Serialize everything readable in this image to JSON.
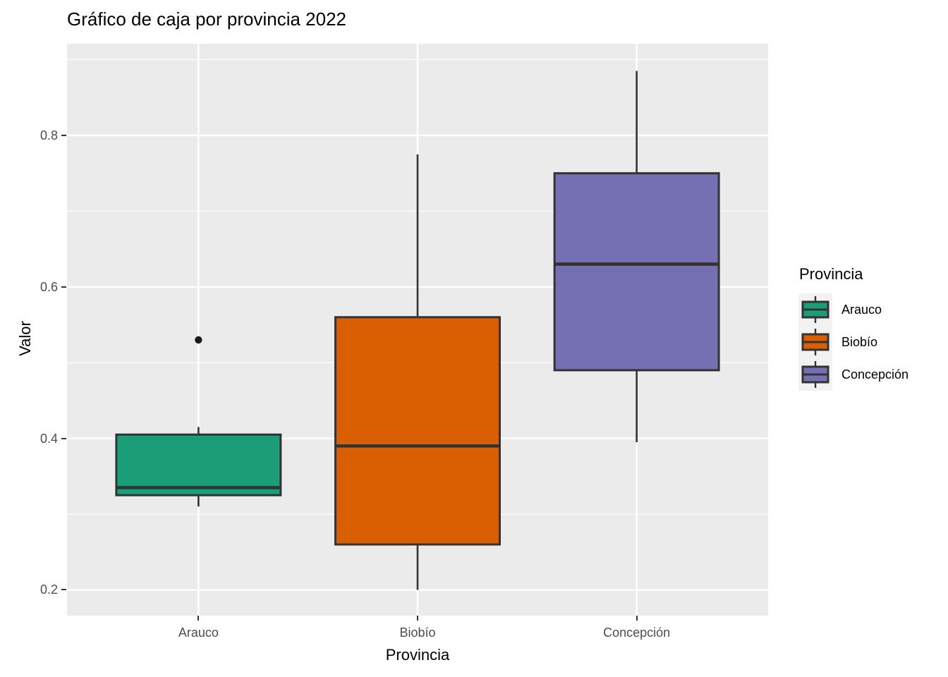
{
  "title": "Gráfico de caja por provincia 2022",
  "y_axis": {
    "title": "Valor",
    "tick_labels": [
      "0.8",
      "0.6",
      "0.4",
      "0.2"
    ]
  },
  "x_axis": {
    "title": "Provincia",
    "tick_labels": [
      "Arauco",
      "Biobío",
      "Concepción"
    ]
  },
  "legend": {
    "title": "Provincia",
    "items": [
      {
        "label": "Arauco",
        "color": "#1B9E77"
      },
      {
        "label": "Biobío",
        "color": "#D95F02"
      },
      {
        "label": "Concepción",
        "color": "#7570B3"
      }
    ]
  },
  "colors": {
    "panel_background": "#EBEBEB",
    "gridline": "#FFFFFF",
    "box_border": "#333333",
    "tick_mark": "#333333",
    "tick_label": "#4D4D4D",
    "text": "#000000",
    "legend_key_background": "#F2F2F2",
    "outlier": "#1A1A1A"
  },
  "chart_data": {
    "type": "boxplot",
    "title": "Gráfico de caja por provincia 2022",
    "xlabel": "Provincia",
    "ylabel": "Valor",
    "categories": [
      "Arauco",
      "Biobío",
      "Concepción"
    ],
    "y_ticks": [
      0.2,
      0.4,
      0.6,
      0.8
    ],
    "y_minor_ticks": [
      0.3,
      0.5,
      0.7,
      0.9
    ],
    "ylim": [
      0.166,
      0.921
    ],
    "grid": true,
    "legend_position": "right",
    "series": [
      {
        "name": "Arauco",
        "color": "#1B9E77",
        "whisker_low": 0.31,
        "q1": 0.325,
        "median": 0.335,
        "q3": 0.405,
        "whisker_high": 0.415,
        "outliers": [
          0.53
        ]
      },
      {
        "name": "Biobío",
        "color": "#D95F02",
        "whisker_low": 0.2,
        "q1": 0.26,
        "median": 0.39,
        "q3": 0.56,
        "whisker_high": 0.775,
        "outliers": []
      },
      {
        "name": "Concepción",
        "color": "#7570B3",
        "whisker_low": 0.395,
        "q1": 0.49,
        "median": 0.63,
        "q3": 0.75,
        "whisker_high": 0.885,
        "outliers": []
      }
    ]
  }
}
